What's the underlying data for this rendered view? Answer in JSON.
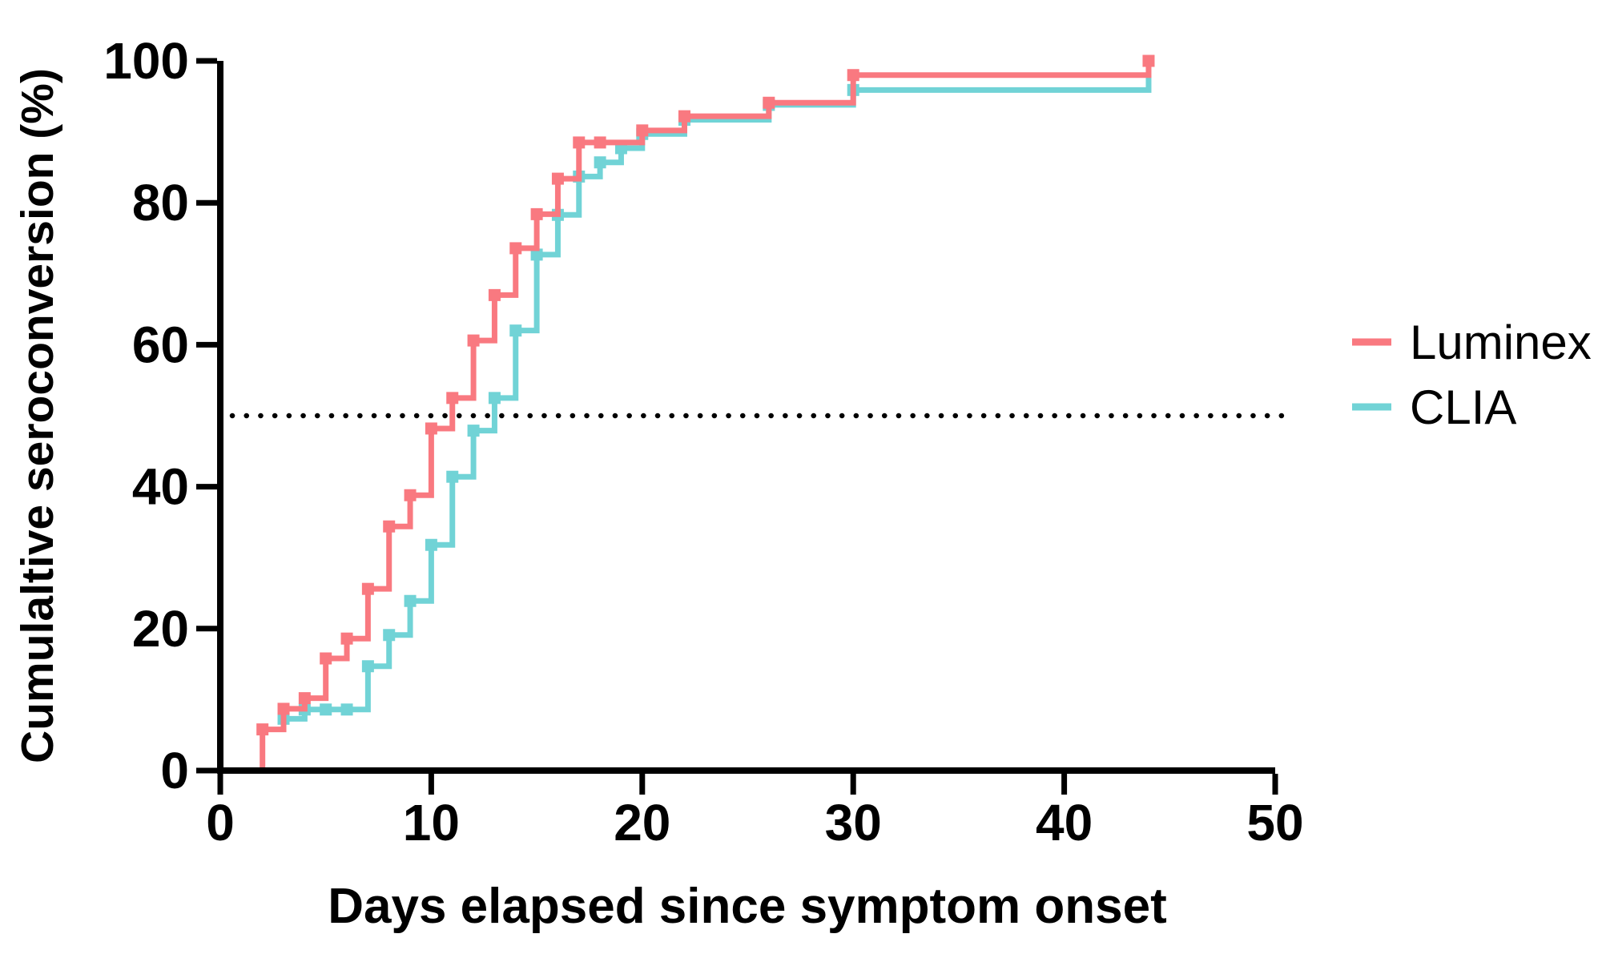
{
  "figure": {
    "background": "#ffffff",
    "text_color": "#000000"
  },
  "chart_data": {
    "type": "line",
    "subtype": "kaplan-meier-step",
    "title": "",
    "xlabel": "Days elapsed since symptom onset",
    "ylabel": "Cumulaltive seroconversion (%)",
    "xlim": [
      0,
      50
    ],
    "ylim": [
      0,
      100
    ],
    "x_ticks": [
      0,
      10,
      20,
      30,
      40,
      50
    ],
    "y_ticks": [
      0,
      20,
      40,
      60,
      80,
      100
    ],
    "grid": false,
    "legend_position": "right-outside",
    "reference_line": {
      "y": 50,
      "style": "dotted",
      "color": "#000000"
    },
    "series": [
      {
        "name": "Luminex",
        "color": "#F97980",
        "marker": "square",
        "marker_skip": [
          0
        ],
        "points": [
          [
            0,
            0
          ],
          [
            2,
            5.8
          ],
          [
            3,
            8.7
          ],
          [
            4,
            10.2
          ],
          [
            5,
            15.8
          ],
          [
            6,
            18.6
          ],
          [
            7,
            25.6
          ],
          [
            8,
            34.4
          ],
          [
            9,
            38.8
          ],
          [
            10,
            48.2
          ],
          [
            11,
            52.5
          ],
          [
            12,
            60.6
          ],
          [
            13,
            67.0
          ],
          [
            14,
            73.6
          ],
          [
            15,
            78.4
          ],
          [
            16,
            83.4
          ],
          [
            17,
            88.5
          ],
          [
            18,
            88.5
          ],
          [
            20,
            90.2
          ],
          [
            22,
            92.2
          ],
          [
            26,
            94.1
          ],
          [
            30,
            98.0
          ],
          [
            44,
            100.0
          ]
        ]
      },
      {
        "name": "CLIA",
        "color": "#71D3D6",
        "marker": "square",
        "marker_skip": [
          21
        ],
        "points": [
          [
            3,
            7.3
          ],
          [
            4,
            8.6
          ],
          [
            5,
            8.6
          ],
          [
            6,
            8.6
          ],
          [
            7,
            14.7
          ],
          [
            8,
            19.1
          ],
          [
            9,
            23.9
          ],
          [
            10,
            31.8
          ],
          [
            11,
            41.4
          ],
          [
            12,
            47.9
          ],
          [
            13,
            52.5
          ],
          [
            14,
            62.0
          ],
          [
            15,
            72.7
          ],
          [
            16,
            78.3
          ],
          [
            17,
            83.7
          ],
          [
            18,
            85.7
          ],
          [
            19,
            87.7
          ],
          [
            20,
            89.7
          ],
          [
            22,
            91.7
          ],
          [
            26,
            93.8
          ],
          [
            30,
            95.9
          ],
          [
            44,
            97.9
          ]
        ]
      }
    ]
  }
}
